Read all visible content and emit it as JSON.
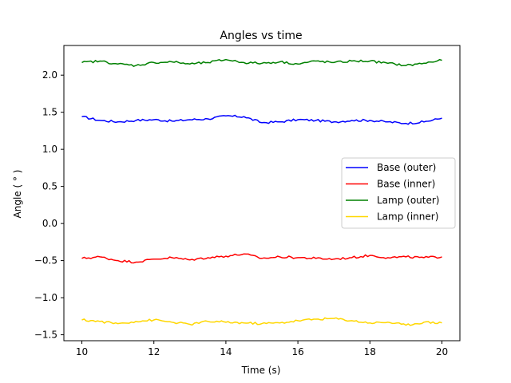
{
  "chart_data": {
    "type": "line",
    "title": "Angles vs time",
    "xlabel": "Time (s)",
    "ylabel": "Angle ( $^\\circ$)",
    "ylabel_display": "Angle ( ° )",
    "xlim": [
      9.5,
      20.5
    ],
    "ylim": [
      -1.58,
      2.4
    ],
    "xticks": [
      10,
      12,
      14,
      16,
      18,
      20
    ],
    "xtick_labels": [
      "10",
      "12",
      "14",
      "16",
      "18",
      "20"
    ],
    "yticks": [
      -1.5,
      -1.0,
      -0.5,
      0.0,
      0.5,
      1.0,
      1.5,
      2.0
    ],
    "ytick_labels": [
      "−1.5",
      "−1.0",
      "−0.5",
      "0.0",
      "0.5",
      "1.0",
      "1.5",
      "2.0"
    ],
    "grid": false,
    "legend_position": "center-right",
    "x": [
      10.0,
      10.5,
      11.0,
      11.5,
      12.0,
      12.5,
      13.0,
      13.5,
      14.0,
      14.5,
      15.0,
      15.5,
      16.0,
      16.5,
      17.0,
      17.5,
      18.0,
      18.5,
      19.0,
      19.5,
      20.0
    ],
    "series": [
      {
        "name": "Base (outer)",
        "color": "#0000ff",
        "values": [
          1.44,
          1.39,
          1.37,
          1.39,
          1.4,
          1.38,
          1.4,
          1.41,
          1.45,
          1.44,
          1.36,
          1.37,
          1.4,
          1.39,
          1.37,
          1.39,
          1.39,
          1.37,
          1.35,
          1.37,
          1.42
        ]
      },
      {
        "name": "Base (inner)",
        "color": "#ff0000",
        "values": [
          -0.47,
          -0.45,
          -0.5,
          -0.52,
          -0.48,
          -0.46,
          -0.49,
          -0.46,
          -0.44,
          -0.41,
          -0.47,
          -0.45,
          -0.46,
          -0.47,
          -0.48,
          -0.46,
          -0.43,
          -0.46,
          -0.45,
          -0.46,
          -0.45
        ]
      },
      {
        "name": "Lamp (outer)",
        "color": "#008000",
        "values": [
          2.17,
          2.19,
          2.15,
          2.13,
          2.17,
          2.18,
          2.15,
          2.17,
          2.21,
          2.17,
          2.16,
          2.18,
          2.15,
          2.19,
          2.17,
          2.19,
          2.19,
          2.16,
          2.13,
          2.16,
          2.2
        ]
      },
      {
        "name": "Lamp (inner)",
        "color": "#ffd700",
        "values": [
          -1.3,
          -1.32,
          -1.35,
          -1.32,
          -1.3,
          -1.33,
          -1.36,
          -1.32,
          -1.33,
          -1.34,
          -1.35,
          -1.34,
          -1.31,
          -1.29,
          -1.28,
          -1.31,
          -1.34,
          -1.33,
          -1.37,
          -1.33,
          -1.34
        ]
      }
    ]
  }
}
